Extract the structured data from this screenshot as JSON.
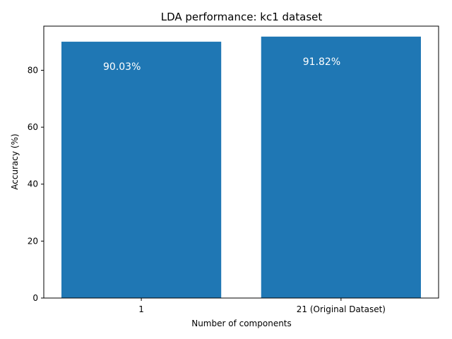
{
  "chart_data": {
    "type": "bar",
    "title": "LDA performance: kc1 dataset",
    "xlabel": "Number of components",
    "ylabel": "Accuracy (%)",
    "categories": [
      "1",
      "21 (Original Dataset)"
    ],
    "values": [
      90.03,
      91.82
    ],
    "value_labels": [
      "90.03%",
      "91.82%"
    ],
    "ylim": [
      0,
      95.5
    ],
    "yticks": [
      0,
      20,
      40,
      60,
      80
    ],
    "bar_color": "#1f77b4",
    "label_color": "#ffffff",
    "grid": false,
    "legend": "none"
  }
}
